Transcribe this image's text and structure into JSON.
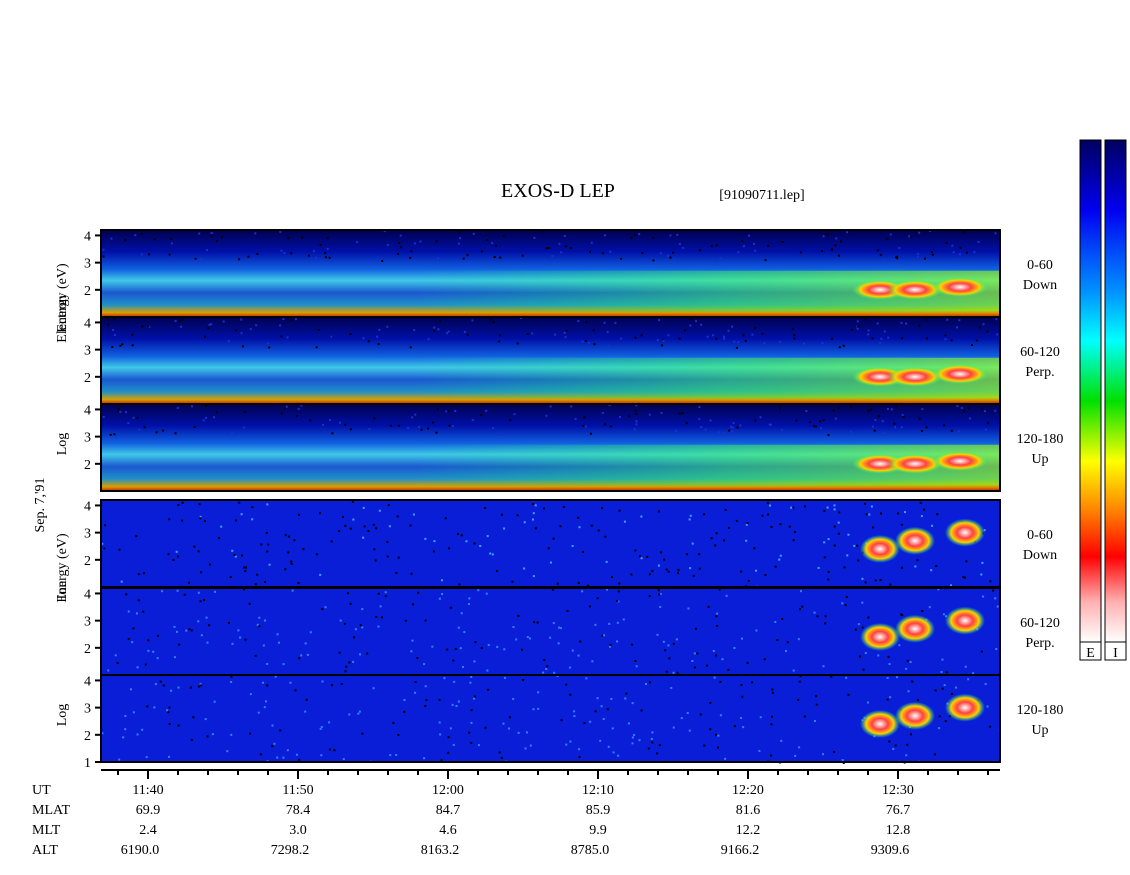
{
  "chart_data": {
    "type": "spectrogram",
    "title": "EXOS-D LEP",
    "file": "[91090711.lep]",
    "date_label": "Sep. 7,'91",
    "groups": [
      {
        "name": "electron",
        "ylabel": [
          "Log",
          "Electron",
          "Energy (eV)"
        ],
        "panels": [
          {
            "label": [
              "0-60",
              "Down"
            ],
            "ylim": [
              1,
              4.2
            ],
            "yticks": [
              2,
              3,
              4
            ]
          },
          {
            "label": [
              "60-120",
              "Perp."
            ],
            "ylim": [
              1,
              4.2
            ],
            "yticks": [
              2,
              3,
              4
            ]
          },
          {
            "label": [
              "120-180",
              "Up"
            ],
            "ylim": [
              1,
              4.2
            ],
            "yticks": [
              2,
              3,
              4
            ]
          }
        ]
      },
      {
        "name": "ion",
        "ylabel": [
          "Log",
          "Ion",
          "Energy (eV)"
        ],
        "panels": [
          {
            "label": [
              "0-60",
              "Down"
            ],
            "ylim": [
              1,
              4.2
            ],
            "yticks": [
              2,
              3,
              4
            ]
          },
          {
            "label": [
              "60-120",
              "Perp."
            ],
            "ylim": [
              1,
              4.2
            ],
            "yticks": [
              2,
              3,
              4
            ]
          },
          {
            "label": [
              "120-180",
              "Up"
            ],
            "ylim": [
              1,
              4.2
            ],
            "yticks": [
              1,
              2,
              3,
              4
            ]
          }
        ]
      }
    ],
    "ephemeris": {
      "rows": [
        "UT",
        "MLAT",
        "MLT",
        "ALT"
      ],
      "columns": [
        [
          "11:40",
          "69.9",
          "2.4",
          "6190.0"
        ],
        [
          "11:50",
          "78.4",
          "3.0",
          "7298.2"
        ],
        [
          "12:00",
          "84.7",
          "4.6",
          "8163.2"
        ],
        [
          "12:10",
          "85.9",
          "9.9",
          "8785.0"
        ],
        [
          "12:20",
          "81.6",
          "12.2",
          "9166.2"
        ],
        [
          "12:30",
          "76.7",
          "12.8",
          "9309.6"
        ]
      ]
    },
    "colorbars": [
      "E",
      "I"
    ]
  }
}
